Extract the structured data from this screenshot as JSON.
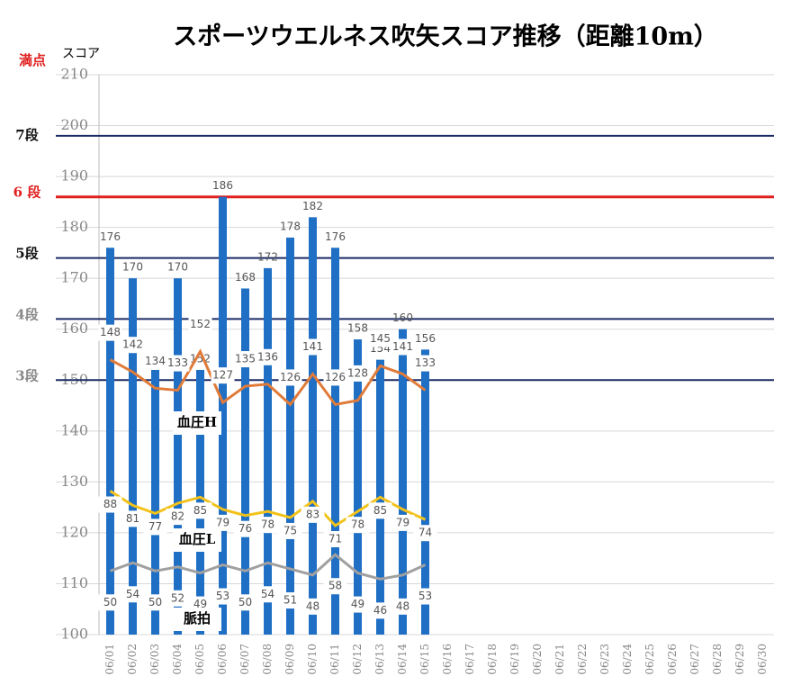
{
  "chart_data": {
    "type": "bar",
    "title": "スポーツウエルネス吹矢スコア推移（距離10m）",
    "y_label": "スコア",
    "max_label": "満点",
    "categories": [
      "06/01",
      "06/02",
      "06/03",
      "06/04",
      "06/05",
      "06/06",
      "06/07",
      "06/08",
      "06/09",
      "06/10",
      "06/11",
      "06/12",
      "06/13",
      "06/14",
      "06/15",
      "06/16",
      "06/17",
      "06/18",
      "06/19",
      "06/20",
      "06/21",
      "06/22",
      "06/23",
      "06/24",
      "06/25",
      "06/26",
      "06/27",
      "06/28",
      "06/29",
      "06/30"
    ],
    "values": [
      176,
      170,
      152,
      170,
      152,
      186,
      168,
      172,
      178,
      182,
      176,
      158,
      154,
      160,
      156,
      null,
      null,
      null,
      null,
      null,
      null,
      null,
      null,
      null,
      null,
      null,
      null,
      null,
      null,
      null
    ],
    "color": "#1f6fc4",
    "ylim": [
      100,
      210
    ],
    "yticks": [
      100,
      110,
      120,
      130,
      140,
      150,
      160,
      170,
      180,
      190,
      200,
      210
    ],
    "grid": true,
    "levels": [
      {
        "label": "7段",
        "value": 198,
        "color": "#1b2a66",
        "text_color": "#111111"
      },
      {
        "label": "6 段",
        "value": 186,
        "color": "#e02020",
        "text_color": "#e02020"
      },
      {
        "label": "5段",
        "value": 174,
        "color": "#1b2a66",
        "text_color": "#111111"
      },
      {
        "label": "4段",
        "value": 162,
        "color": "#1b2a66",
        "text_color": "#888888"
      },
      {
        "label": "3段",
        "value": 150,
        "color": "#1b2a66",
        "text_color": "#888888"
      }
    ],
    "lines": [
      {
        "name": "血圧H",
        "color": "#e07b39",
        "ylim": [
          13,
          288
        ],
        "values": [
          148,
          142,
          134,
          133,
          152,
          127,
          135,
          136,
          126,
          141,
          126,
          128,
          145,
          141,
          133
        ]
      },
      {
        "name": "血圧L",
        "color": "#f2c21a",
        "ylim": [
          17.5,
          292.5
        ],
        "values": [
          88,
          81,
          77,
          82,
          85,
          79,
          76,
          78,
          75,
          83,
          71,
          78,
          85,
          79,
          74
        ]
      },
      {
        "name": "脈拍",
        "color": "#a0a0a0",
        "ylim": [
          18.75,
          293.75
        ],
        "values": [
          50,
          54,
          50,
          52,
          49,
          53,
          50,
          54,
          51,
          48,
          58,
          49,
          46,
          48,
          53
        ]
      }
    ]
  }
}
